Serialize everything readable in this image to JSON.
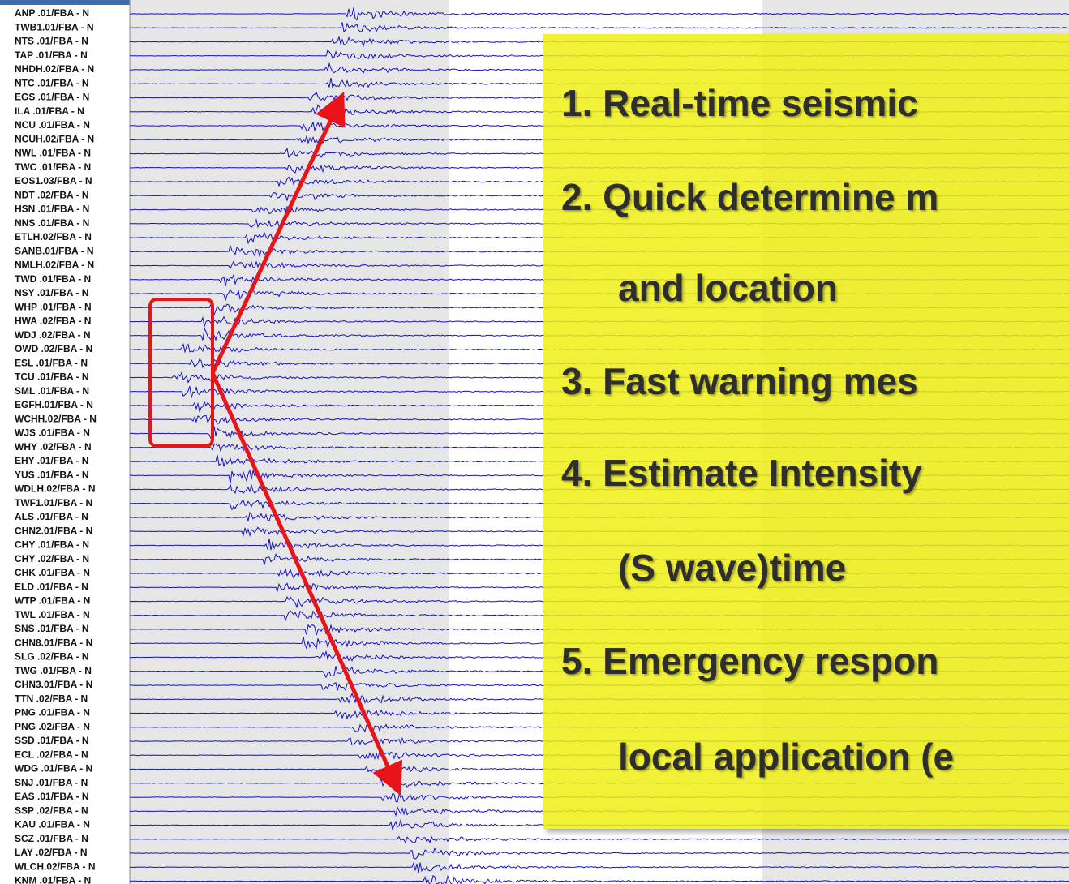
{
  "stations": [
    "ANP .01/FBA - N",
    "TWB1.01/FBA - N",
    "NTS .01/FBA - N",
    "TAP .01/FBA - N",
    "NHDH.02/FBA - N",
    "NTC .01/FBA - N",
    "EGS .01/FBA - N",
    "ILA .01/FBA - N",
    "NCU .01/FBA - N",
    "NCUH.02/FBA - N",
    "NWL .01/FBA - N",
    "TWC .01/FBA - N",
    "EOS1.03/FBA - N",
    "NDT .02/FBA - N",
    "HSN .01/FBA - N",
    "NNS .01/FBA - N",
    "ETLH.02/FBA - N",
    "SANB.01/FBA - N",
    "NMLH.02/FBA - N",
    "TWD .01/FBA - N",
    "NSY .01/FBA - N",
    "WHP .01/FBA - N",
    "HWA .02/FBA - N",
    "WDJ .02/FBA - N",
    "OWD .02/FBA - N",
    "ESL .01/FBA - N",
    "TCU .01/FBA - N",
    "SML .01/FBA - N",
    "EGFH.01/FBA - N",
    "WCHH.02/FBA - N",
    "WJS .01/FBA - N",
    "WHY .02/FBA - N",
    "EHY .01/FBA - N",
    "YUS .01/FBA - N",
    "WDLH.02/FBA - N",
    "TWF1.01/FBA - N",
    "ALS .01/FBA - N",
    "CHN2.01/FBA - N",
    "CHY .01/FBA - N",
    "CHY .02/FBA - N",
    "CHK .01/FBA - N",
    "ELD .01/FBA - N",
    "WTP .01/FBA - N",
    "TWL .01/FBA - N",
    "SNS .01/FBA - N",
    "CHN8.01/FBA - N",
    "SLG .02/FBA - N",
    "TWG .01/FBA - N",
    "CHN3.01/FBA - N",
    "TTN .02/FBA - N",
    "PNG .01/FBA - N",
    "PNG .02/FBA - N",
    "SSD .01/FBA - N",
    "ECL .02/FBA - N",
    "WDG .01/FBA - N",
    "SNJ .01/FBA - N",
    "EAS .01/FBA - N",
    "SSP .02/FBA - N",
    "KAU .01/FBA - N",
    "SCZ .01/FBA - N",
    "LAY .02/FBA - N",
    "WLCH.02/FBA - N",
    "KNM .01/FBA - N"
  ],
  "overlay": {
    "lines": [
      "1. Real-time seismic",
      "2. Quick determine m",
      "and location",
      "3. Fast  warning mes",
      "4. Estimate Intensity",
      "(S wave)time",
      "5. Emergency respon",
      "local application (e"
    ]
  }
}
